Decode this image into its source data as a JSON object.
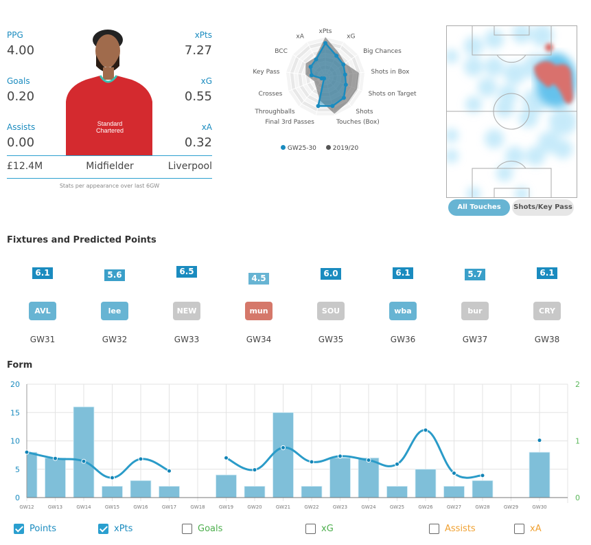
{
  "player": {
    "stats_left": [
      {
        "label": "PPG",
        "value": "4.00"
      },
      {
        "label": "Goals",
        "value": "0.20"
      },
      {
        "label": "Assists",
        "value": "0.00"
      }
    ],
    "stats_right": [
      {
        "label": "xPts",
        "value": "7.27"
      },
      {
        "label": "xG",
        "value": "0.55"
      },
      {
        "label": "xA",
        "value": "0.32"
      }
    ],
    "price": "£12.4M",
    "position": "Midfielder",
    "team": "Liverpool",
    "footnote": "Stats per appearance over last 6GW",
    "shirt_sponsor": "Standard Chartered"
  },
  "radar": {
    "axes": [
      "xPts",
      "xG",
      "Big Chances",
      "Shots in Box",
      "Shots on Target",
      "Shots",
      "Touches (Box)",
      "Final 3rd Passes",
      "Throughballs",
      "Crosses",
      "Key Pass",
      "BCC",
      "xA"
    ],
    "series": [
      {
        "name": "GW25-30",
        "color": "#1a8bbf",
        "values": [
          0.85,
          0.6,
          0.55,
          0.5,
          0.55,
          0.7,
          0.75,
          0.75,
          0.05,
          0.1,
          0.35,
          0.45,
          0.5
        ]
      },
      {
        "name": "2019/20",
        "color": "#555555",
        "values": [
          1.0,
          0.7,
          0.6,
          0.85,
          0.85,
          0.85,
          0.95,
          0.6,
          0.35,
          0.3,
          0.5,
          0.6,
          0.55
        ]
      }
    ]
  },
  "heatmap": {
    "buttons": [
      {
        "label": "All Touches",
        "active": true
      },
      {
        "label": "Shots/Key Pass",
        "active": false
      }
    ]
  },
  "fixtures": {
    "title": "Fixtures and Predicted Points",
    "items": [
      {
        "gw": "GW31",
        "opp": "AVL",
        "pts": "6.1",
        "opp_color": "#67b4d3",
        "pts_color": "#1a8bbf"
      },
      {
        "gw": "GW32",
        "opp": "lee",
        "pts": "5.6",
        "opp_color": "#67b4d3",
        "pts_color": "#3a9fc9"
      },
      {
        "gw": "GW33",
        "opp": "NEW",
        "pts": "6.5",
        "opp_color": "#c8c8c8",
        "pts_color": "#1a8bbf"
      },
      {
        "gw": "GW34",
        "opp": "mun",
        "pts": "4.5",
        "opp_color": "#d5786a",
        "pts_color": "#67b4d3"
      },
      {
        "gw": "GW35",
        "opp": "SOU",
        "pts": "6.0",
        "opp_color": "#c8c8c8",
        "pts_color": "#1a8bbf"
      },
      {
        "gw": "GW36",
        "opp": "wba",
        "pts": "6.1",
        "opp_color": "#67b4d3",
        "pts_color": "#1a8bbf"
      },
      {
        "gw": "GW37",
        "opp": "bur",
        "pts": "5.7",
        "opp_color": "#c8c8c8",
        "pts_color": "#3a9fc9"
      },
      {
        "gw": "GW38",
        "opp": "CRY",
        "pts": "6.1",
        "opp_color": "#c8c8c8",
        "pts_color": "#1a8bbf"
      }
    ]
  },
  "form": {
    "title": "Form",
    "legend": [
      {
        "label": "Points",
        "checked": true,
        "color": "#1a8bbf"
      },
      {
        "label": "xPts",
        "checked": true,
        "color": "#1a8bbf"
      },
      {
        "label": "Goals",
        "checked": false,
        "color": "#4cae4c"
      },
      {
        "label": "xG",
        "checked": false,
        "color": "#4cae4c"
      },
      {
        "label": "Assists",
        "checked": false,
        "color": "#f0a030"
      },
      {
        "label": "xA",
        "checked": false,
        "color": "#f0a030"
      }
    ]
  },
  "chart_data": {
    "type": "bar",
    "categories": [
      "GW12",
      "GW13",
      "GW14",
      "GW15",
      "GW16",
      "GW17",
      "GW18",
      "GW19",
      "GW20",
      "GW21",
      "GW22",
      "GW23",
      "GW24",
      "GW25",
      "GW26",
      "GW27",
      "GW28",
      "GW29",
      "GW30"
    ],
    "series": [
      {
        "name": "Points",
        "type": "bar",
        "color": "#7fbfd9",
        "values": [
          8,
          7,
          16,
          2,
          3,
          2,
          null,
          4,
          2,
          15,
          2,
          7,
          7,
          2,
          5,
          2,
          3,
          null,
          8
        ]
      },
      {
        "name": "xPts",
        "type": "line",
        "color": "#2a9bc8",
        "values": [
          8.0,
          6.9,
          6.4,
          3.5,
          6.8,
          4.7,
          null,
          7.0,
          4.9,
          8.8,
          6.3,
          7.3,
          6.6,
          5.9,
          11.9,
          4.3,
          3.9,
          null,
          10.1
        ]
      }
    ],
    "yleft": {
      "ticks": [
        "0",
        "5",
        "10",
        "15",
        "20"
      ],
      "range": [
        0,
        20
      ]
    },
    "yright": {
      "ticks": [
        "0",
        "1",
        "2"
      ],
      "range": [
        0,
        2
      ]
    },
    "grid": true
  }
}
